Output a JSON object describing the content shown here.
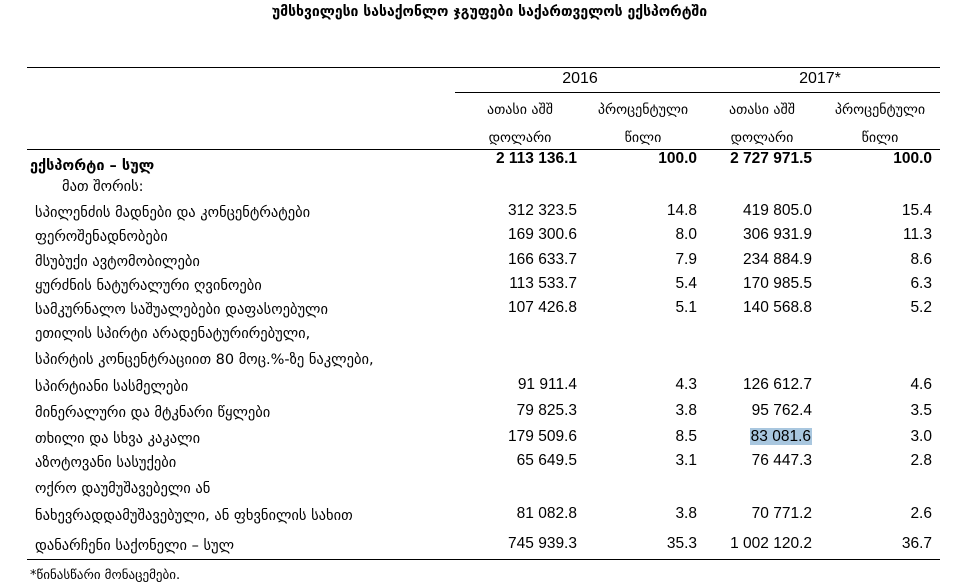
{
  "title": "უმსხვილესი სასაქონლო ჯგუფები საქართველოს ექსპორტში",
  "header": {
    "year1": "2016",
    "year2": "2017*",
    "col_value": [
      "ათასი აშშ",
      "დოლარი"
    ],
    "col_pct": [
      "პროცენტული",
      "წილი"
    ]
  },
  "total": {
    "label": "ექსპორტი – სულ",
    "v2016": "2 113 136.1",
    "p2016": "100.0",
    "v2017": "2 727 971.5",
    "p2017": "100.0"
  },
  "subheading": "მათ შორის:",
  "rows": [
    {
      "label": [
        "სპილენძის მადნები და კონცენტრატები"
      ],
      "v2016": "312 323.5",
      "p2016": "14.8",
      "v2017": "419 805.0",
      "p2017": "15.4"
    },
    {
      "label": [
        "ფეროშენადნობები"
      ],
      "v2016": "169 300.6",
      "p2016": "8.0",
      "v2017": "306 931.9",
      "p2017": "11.3"
    },
    {
      "label": [
        "მსუბუქი ავტომობილები"
      ],
      "v2016": "166 633.7",
      "p2016": "7.9",
      "v2017": "234 884.9",
      "p2017": "8.6"
    },
    {
      "label": [
        "ყურძნის ნატურალური ღვინოები"
      ],
      "v2016": "113 533.7",
      "p2016": "5.4",
      "v2017": "170 985.5",
      "p2017": "6.3"
    },
    {
      "label": [
        "სამკურნალო საშუალებები დაფასოებული"
      ],
      "v2016": "107 426.8",
      "p2016": "5.1",
      "v2017": "140 568.8",
      "p2017": "5.2"
    },
    {
      "label": [
        "ეთილის სპირტი არადენატურირებული,",
        "სპირტის კონცენტრაციით 80 მოც.%-ზე ნაკლები,",
        "სპირტიანი სასმელები"
      ],
      "v2016": "91 911.4",
      "p2016": "4.3",
      "v2017": "126 612.7",
      "p2017": "4.6"
    },
    {
      "label": [
        "მინერალური და მტკნარი წყლები"
      ],
      "v2016": "79 825.3",
      "p2016": "3.8",
      "v2017": "95 762.4",
      "p2017": "3.5"
    },
    {
      "label": [
        "თხილი და სხვა კაკალი"
      ],
      "v2016": "179 509.6",
      "p2016": "8.5",
      "v2017": "83 081.6",
      "p2017": "3.0"
    },
    {
      "label": [
        "აზოტოვანი სასუქები"
      ],
      "v2016": "65 649.5",
      "p2016": "3.1",
      "v2017": "76 447.3",
      "p2017": "2.8"
    },
    {
      "label": [
        "ოქრო დაუმუშავებელი ან",
        "ნახევრადდამუშავებული, ან ფხვნილის სახით"
      ],
      "v2016": "81 082.8",
      "p2016": "3.8",
      "v2017": "70 771.2",
      "p2017": "2.6"
    },
    {
      "label": [
        "დანარჩენი საქონელი – სულ"
      ],
      "v2016": "745 939.3",
      "p2016": "35.3",
      "v2017": "1 002 120.2",
      "p2017": "36.7"
    }
  ],
  "footnote": "*წინასწარი მონაცემები.",
  "highlight_color": "#a9c7df"
}
